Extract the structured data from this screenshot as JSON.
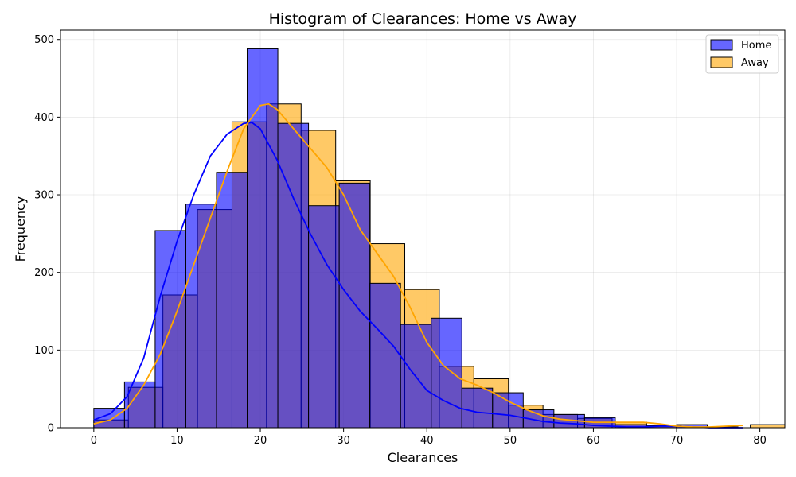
{
  "chart_data": {
    "type": "histogram",
    "title": "Histogram of Clearances: Home vs Away",
    "xlabel": "Clearances",
    "ylabel": "Frequency",
    "xlim": [
      -4,
      83
    ],
    "ylim": [
      0,
      512
    ],
    "xticks": [
      0,
      10,
      20,
      30,
      40,
      50,
      60,
      70,
      80
    ],
    "yticks": [
      0,
      100,
      200,
      300,
      400,
      500
    ],
    "grid": true,
    "legend_position": "top-right",
    "series": [
      {
        "name": "Home",
        "color": "#0000ff",
        "bar_alpha": 0.6,
        "bin_width": 3.684,
        "bin_start": 0,
        "counts": [
          25,
          59,
          254,
          288,
          329,
          488,
          392,
          286,
          315,
          186,
          133,
          141,
          51,
          45,
          23,
          17,
          13,
          4,
          3,
          4,
          1
        ],
        "kde": [
          [
            0,
            10
          ],
          [
            2,
            18
          ],
          [
            4,
            40
          ],
          [
            6,
            90
          ],
          [
            8,
            170
          ],
          [
            10,
            240
          ],
          [
            12,
            300
          ],
          [
            14,
            350
          ],
          [
            16,
            378
          ],
          [
            18,
            392
          ],
          [
            19,
            393
          ],
          [
            20,
            385
          ],
          [
            22,
            345
          ],
          [
            24,
            295
          ],
          [
            26,
            250
          ],
          [
            28,
            210
          ],
          [
            30,
            178
          ],
          [
            32,
            150
          ],
          [
            34,
            128
          ],
          [
            36,
            105
          ],
          [
            38,
            75
          ],
          [
            40,
            48
          ],
          [
            42,
            35
          ],
          [
            44,
            25
          ],
          [
            46,
            20
          ],
          [
            48,
            18
          ],
          [
            50,
            16
          ],
          [
            52,
            12
          ],
          [
            54,
            8
          ],
          [
            56,
            6
          ],
          [
            58,
            5
          ],
          [
            60,
            3
          ],
          [
            62,
            2
          ],
          [
            64,
            1
          ],
          [
            66,
            1
          ],
          [
            68,
            2
          ],
          [
            70,
            2
          ],
          [
            72,
            1
          ],
          [
            74,
            0
          ],
          [
            76,
            0
          ],
          [
            78,
            0
          ]
        ]
      },
      {
        "name": "Away",
        "color": "#ffa500",
        "bar_alpha": 0.6,
        "bin_width": 4.15,
        "bin_start": 0,
        "counts": [
          10,
          52,
          171,
          281,
          394,
          417,
          383,
          318,
          237,
          178,
          79,
          63,
          29,
          17,
          12,
          7,
          3,
          0,
          0,
          4
        ],
        "kde": [
          [
            0,
            5
          ],
          [
            2,
            10
          ],
          [
            4,
            25
          ],
          [
            6,
            55
          ],
          [
            8,
            95
          ],
          [
            10,
            150
          ],
          [
            12,
            210
          ],
          [
            14,
            270
          ],
          [
            16,
            330
          ],
          [
            18,
            385
          ],
          [
            20,
            415
          ],
          [
            21,
            417
          ],
          [
            22,
            410
          ],
          [
            24,
            385
          ],
          [
            26,
            360
          ],
          [
            28,
            335
          ],
          [
            30,
            300
          ],
          [
            32,
            255
          ],
          [
            34,
            225
          ],
          [
            36,
            195
          ],
          [
            38,
            155
          ],
          [
            40,
            110
          ],
          [
            42,
            80
          ],
          [
            44,
            63
          ],
          [
            46,
            55
          ],
          [
            48,
            45
          ],
          [
            50,
            33
          ],
          [
            52,
            23
          ],
          [
            54,
            15
          ],
          [
            56,
            11
          ],
          [
            58,
            9
          ],
          [
            60,
            7
          ],
          [
            62,
            7
          ],
          [
            64,
            7
          ],
          [
            66,
            7
          ],
          [
            68,
            5
          ],
          [
            70,
            2
          ],
          [
            72,
            1
          ],
          [
            74,
            1
          ],
          [
            76,
            2
          ],
          [
            78,
            3
          ]
        ]
      }
    ]
  }
}
